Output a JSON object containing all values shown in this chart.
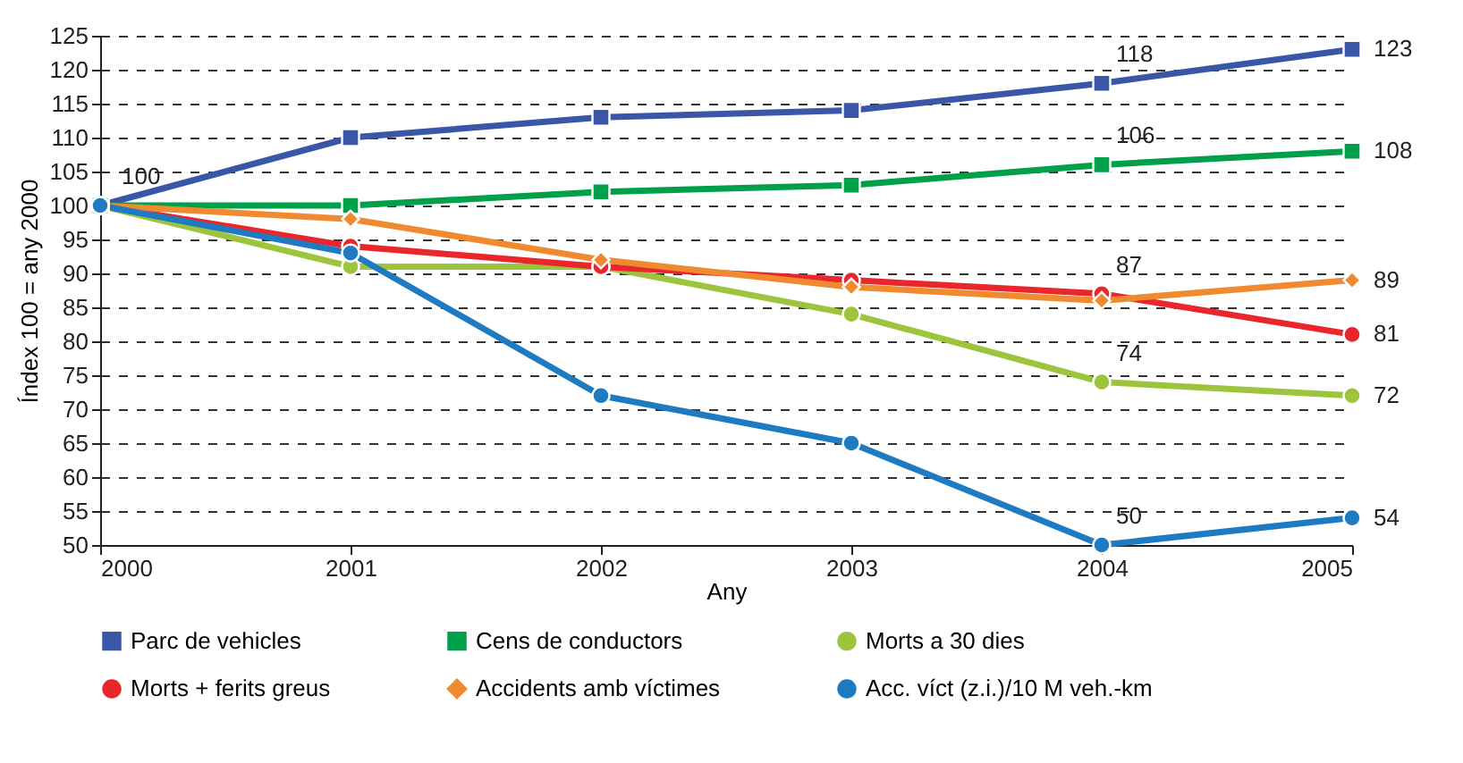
{
  "chart_data": {
    "type": "line",
    "xlabel": "Any",
    "ylabel": "Índex 100 = any 2000",
    "x": [
      2000,
      2001,
      2002,
      2003,
      2004,
      2005
    ],
    "xlim": [
      2000,
      2005
    ],
    "xticks": [
      2000,
      2001,
      2002,
      2003,
      2004,
      2005
    ],
    "ylim": [
      50,
      125
    ],
    "yticks": [
      50,
      55,
      60,
      65,
      70,
      75,
      80,
      85,
      90,
      95,
      100,
      105,
      110,
      115,
      120,
      125
    ],
    "grid": "y",
    "legend": "bottom",
    "line_style": "solid",
    "series": [
      {
        "name": "Parc de vehicles",
        "color": "#3a57a7",
        "marker": "square",
        "values": [
          100,
          110,
          113,
          114,
          118,
          123
        ],
        "value_labels": [
          "100",
          null,
          null,
          null,
          "118",
          "123"
        ]
      },
      {
        "name": "Cens de conductors",
        "color": "#00a04a",
        "marker": "square",
        "values": [
          100,
          100,
          102,
          103,
          106,
          108
        ],
        "value_labels": [
          null,
          null,
          null,
          null,
          "106",
          "108"
        ]
      },
      {
        "name": "Morts a 30 dies",
        "color": "#9cc43c",
        "marker": "circle",
        "values": [
          100,
          91,
          91,
          84,
          74,
          72
        ],
        "value_labels": [
          null,
          null,
          null,
          null,
          "74",
          "72"
        ]
      },
      {
        "name": "Morts + ferits greus",
        "color": "#e8262c",
        "marker": "circle",
        "values": [
          100,
          94,
          91,
          89,
          87,
          81
        ],
        "value_labels": [
          null,
          null,
          null,
          null,
          "87",
          "81"
        ]
      },
      {
        "name": "Accidents amb víctimes",
        "color": "#f08a30",
        "marker": "diamond",
        "values": [
          100,
          98,
          92,
          88,
          86,
          89
        ],
        "value_labels": [
          null,
          null,
          null,
          null,
          null,
          "89"
        ]
      },
      {
        "name": "Acc. víct (z.i.)/10 M veh.-km",
        "color": "#1f7bc1",
        "marker": "circle",
        "values": [
          100,
          93,
          72,
          65,
          50,
          54
        ],
        "value_labels": [
          null,
          null,
          null,
          null,
          "50",
          "54"
        ]
      }
    ]
  }
}
